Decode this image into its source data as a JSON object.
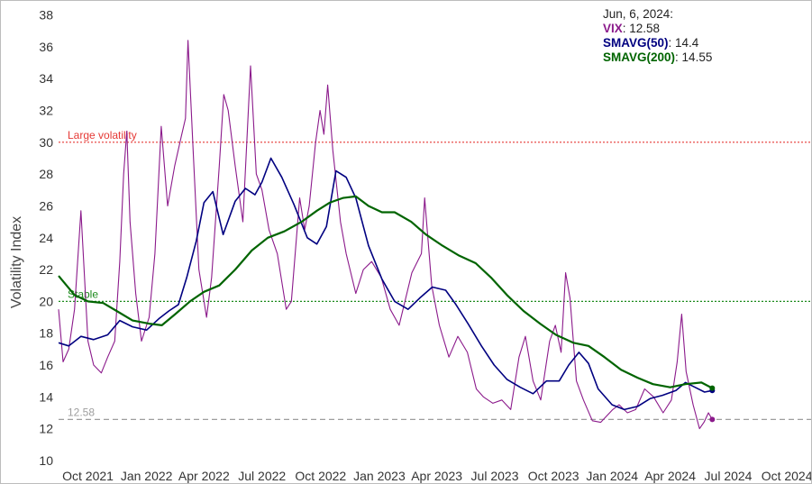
{
  "chart_data": {
    "type": "line",
    "ylabel": "Volatility Index",
    "ylim": [
      9.6,
      38.6
    ],
    "y_ticks": [
      10,
      12,
      14,
      16,
      18,
      20,
      22,
      24,
      26,
      28,
      30,
      32,
      34,
      36,
      38
    ],
    "x_range": [
      "2021-08-16",
      "2024-11-08"
    ],
    "x_ticks": [
      {
        "date": "2021-10-01",
        "label": "Oct 2021"
      },
      {
        "date": "2022-01-01",
        "label": "Jan 2022"
      },
      {
        "date": "2022-04-01",
        "label": "Apr 2022"
      },
      {
        "date": "2022-07-01",
        "label": "Jul 2022"
      },
      {
        "date": "2022-10-01",
        "label": "Oct 2022"
      },
      {
        "date": "2023-01-01",
        "label": "Jan 2023"
      },
      {
        "date": "2023-04-01",
        "label": "Apr 2023"
      },
      {
        "date": "2023-07-01",
        "label": "Jul 2023"
      },
      {
        "date": "2023-10-01",
        "label": "Oct 2023"
      },
      {
        "date": "2024-01-01",
        "label": "Jan 2024"
      },
      {
        "date": "2024-04-01",
        "label": "Apr 2024"
      },
      {
        "date": "2024-07-01",
        "label": "Jul 2024"
      },
      {
        "date": "2024-10-01",
        "label": "Oct 2024"
      }
    ],
    "reference_lines": [
      {
        "y": 30,
        "label": "Large volatility",
        "color": "#e53935",
        "style": "dotted"
      },
      {
        "y": 20,
        "label": "Stable",
        "color": "#1b8a1b",
        "style": "dotted"
      },
      {
        "y": 12.58,
        "label": "12.58",
        "color": "#9e9e9e",
        "style": "dashed"
      }
    ],
    "legend": {
      "header": "Jun, 6, 2024:",
      "items": [
        {
          "name": "VIX",
          "value": "12.58",
          "color": "#8b1a8b"
        },
        {
          "name": "SMAVG(50)",
          "value": "14.4",
          "color": "#000080"
        },
        {
          "name": "SMAVG(200)",
          "value": "14.55",
          "color": "#006400"
        }
      ]
    },
    "series": [
      {
        "name": "VIX",
        "color": "#8b1a8b",
        "x": [
          "2021-08-16",
          "2021-08-23",
          "2021-09-01",
          "2021-09-10",
          "2021-09-20",
          "2021-10-01",
          "2021-10-10",
          "2021-10-22",
          "2021-11-01",
          "2021-11-12",
          "2021-11-20",
          "2021-11-26",
          "2021-12-01",
          "2021-12-06",
          "2021-12-15",
          "2021-12-24",
          "2022-01-05",
          "2022-01-14",
          "2022-01-24",
          "2022-02-03",
          "2022-02-14",
          "2022-02-24",
          "2022-03-03",
          "2022-03-07",
          "2022-03-15",
          "2022-03-24",
          "2022-04-05",
          "2022-04-13",
          "2022-04-25",
          "2022-05-02",
          "2022-05-09",
          "2022-05-20",
          "2022-06-01",
          "2022-06-13",
          "2022-06-22",
          "2022-07-01",
          "2022-07-12",
          "2022-07-25",
          "2022-08-08",
          "2022-08-16",
          "2022-08-29",
          "2022-09-06",
          "2022-09-13",
          "2022-09-23",
          "2022-09-30",
          "2022-10-06",
          "2022-10-12",
          "2022-10-20",
          "2022-11-01",
          "2022-11-10",
          "2022-11-25",
          "2022-12-07",
          "2022-12-20",
          "2023-01-04",
          "2023-01-18",
          "2023-02-01",
          "2023-02-21",
          "2023-03-08",
          "2023-03-13",
          "2023-03-24",
          "2023-04-05",
          "2023-04-20",
          "2023-05-04",
          "2023-05-19",
          "2023-06-02",
          "2023-06-13",
          "2023-06-28",
          "2023-07-12",
          "2023-07-26",
          "2023-08-08",
          "2023-08-18",
          "2023-08-30",
          "2023-09-11",
          "2023-09-25",
          "2023-10-04",
          "2023-10-13",
          "2023-10-20",
          "2023-10-27",
          "2023-11-06",
          "2023-11-17",
          "2023-12-01",
          "2023-12-14",
          "2024-01-02",
          "2024-01-12",
          "2024-01-25",
          "2024-02-07",
          "2024-02-21",
          "2024-03-06",
          "2024-03-21",
          "2024-04-03",
          "2024-04-12",
          "2024-04-19",
          "2024-04-26",
          "2024-05-07",
          "2024-05-17",
          "2024-05-24",
          "2024-05-31",
          "2024-06-06"
        ],
        "y": [
          19.5,
          16.2,
          17.0,
          19.5,
          25.7,
          17.5,
          16.0,
          15.5,
          16.5,
          17.5,
          22.5,
          28.0,
          30.7,
          25.0,
          20.5,
          17.5,
          19.0,
          23.0,
          31.0,
          26.0,
          28.5,
          30.3,
          31.5,
          36.4,
          29.5,
          22.0,
          19.0,
          21.5,
          28.5,
          33.0,
          32.0,
          28.5,
          25.0,
          34.8,
          28.0,
          27.0,
          24.5,
          23.0,
          19.5,
          20.0,
          26.5,
          24.5,
          26.0,
          30.0,
          32.0,
          30.5,
          33.6,
          29.5,
          25.0,
          23.0,
          20.5,
          22.0,
          22.5,
          21.5,
          19.5,
          18.5,
          21.8,
          23.0,
          26.5,
          21.0,
          18.5,
          16.5,
          17.8,
          16.8,
          14.5,
          14.0,
          13.6,
          13.8,
          13.2,
          16.5,
          17.8,
          15.0,
          13.8,
          17.5,
          18.5,
          16.8,
          21.8,
          20.2,
          15.0,
          13.8,
          12.5,
          12.4,
          13.2,
          13.5,
          13.0,
          13.2,
          14.5,
          14.0,
          13.0,
          13.8,
          16.2,
          19.2,
          15.6,
          13.5,
          12.0,
          12.4,
          13.0,
          12.58
        ],
        "last_value": 12.58
      },
      {
        "name": "SMAVG(50)",
        "color": "#000080",
        "x": [
          "2021-08-16",
          "2021-09-01",
          "2021-09-20",
          "2021-10-10",
          "2021-11-01",
          "2021-11-20",
          "2021-12-10",
          "2022-01-01",
          "2022-01-20",
          "2022-02-05",
          "2022-02-20",
          "2022-03-05",
          "2022-03-20",
          "2022-04-01",
          "2022-04-15",
          "2022-05-01",
          "2022-05-20",
          "2022-06-05",
          "2022-06-20",
          "2022-07-01",
          "2022-07-15",
          "2022-08-01",
          "2022-08-20",
          "2022-09-10",
          "2022-09-25",
          "2022-10-10",
          "2022-10-25",
          "2022-11-10",
          "2022-11-25",
          "2022-12-15",
          "2023-01-05",
          "2023-01-25",
          "2023-02-15",
          "2023-03-05",
          "2023-03-25",
          "2023-04-15",
          "2023-05-01",
          "2023-05-20",
          "2023-06-10",
          "2023-06-30",
          "2023-07-20",
          "2023-08-10",
          "2023-08-30",
          "2023-09-20",
          "2023-10-10",
          "2023-10-25",
          "2023-11-10",
          "2023-11-25",
          "2023-12-10",
          "2024-01-01",
          "2024-01-20",
          "2024-02-10",
          "2024-03-01",
          "2024-03-20",
          "2024-04-10",
          "2024-04-25",
          "2024-05-10",
          "2024-05-25",
          "2024-06-06"
        ],
        "y": [
          17.4,
          17.2,
          17.8,
          17.6,
          17.9,
          18.8,
          18.4,
          18.2,
          18.9,
          19.4,
          19.8,
          21.5,
          23.8,
          26.2,
          26.9,
          24.2,
          26.3,
          27.1,
          26.7,
          27.5,
          29.0,
          27.8,
          26.1,
          24.0,
          23.6,
          24.7,
          28.2,
          27.8,
          26.5,
          23.5,
          21.4,
          20.0,
          19.5,
          20.2,
          20.9,
          20.7,
          19.8,
          18.6,
          17.2,
          16.0,
          15.1,
          14.6,
          14.2,
          15.0,
          15.0,
          16.0,
          16.8,
          16.1,
          14.5,
          13.5,
          13.2,
          13.4,
          13.9,
          14.1,
          14.4,
          14.9,
          14.6,
          14.3,
          14.4
        ],
        "last_value": 14.4
      },
      {
        "name": "SMAVG(200)",
        "color": "#006400",
        "x": [
          "2021-08-16",
          "2021-09-10",
          "2021-10-01",
          "2021-10-25",
          "2021-11-15",
          "2021-12-10",
          "2022-01-05",
          "2022-01-25",
          "2022-02-15",
          "2022-03-10",
          "2022-04-01",
          "2022-04-25",
          "2022-05-20",
          "2022-06-15",
          "2022-07-10",
          "2022-08-05",
          "2022-09-01",
          "2022-09-25",
          "2022-10-15",
          "2022-11-05",
          "2022-11-25",
          "2022-12-15",
          "2023-01-05",
          "2023-01-25",
          "2023-02-20",
          "2023-03-15",
          "2023-04-10",
          "2023-05-05",
          "2023-06-01",
          "2023-06-25",
          "2023-07-20",
          "2023-08-15",
          "2023-09-10",
          "2023-10-05",
          "2023-11-01",
          "2023-11-25",
          "2023-12-20",
          "2024-01-15",
          "2024-02-10",
          "2024-03-05",
          "2024-04-01",
          "2024-04-25",
          "2024-05-20",
          "2024-06-06"
        ],
        "y": [
          21.6,
          20.4,
          20.0,
          19.9,
          19.4,
          18.8,
          18.6,
          18.5,
          19.2,
          20.0,
          20.6,
          21.0,
          22.0,
          23.2,
          24.0,
          24.4,
          25.0,
          25.7,
          26.2,
          26.5,
          26.6,
          26.0,
          25.6,
          25.6,
          25.0,
          24.2,
          23.5,
          22.9,
          22.4,
          21.5,
          20.4,
          19.4,
          18.6,
          17.9,
          17.4,
          17.2,
          16.5,
          15.7,
          15.2,
          14.8,
          14.6,
          14.8,
          14.9,
          14.55
        ],
        "last_value": 14.55
      }
    ]
  }
}
